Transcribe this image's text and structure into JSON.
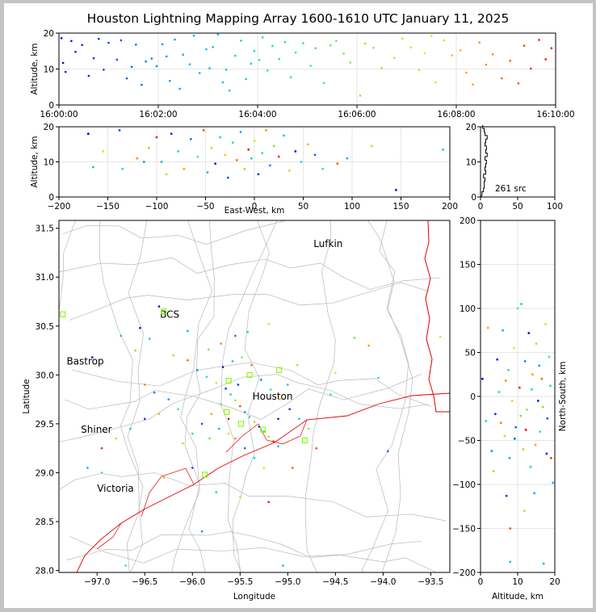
{
  "title": "Houston Lightning Mapping Array 1600-1610 UTC January 11, 2025",
  "colors": {
    "boundary": "#e00000",
    "county": "#b8b8b8",
    "station": "#7fff00",
    "houston": "#ff9900",
    "grid": "#e6e6e6"
  },
  "chart_data": [
    {
      "type": "scatter",
      "name_key": "time-altitude",
      "ylabel": "Altitude, km",
      "xlabel": "",
      "x_ticks": [
        "16:00:00",
        "16:02:00",
        "16:04:00",
        "16:06:00",
        "16:08:00",
        "16:10:00"
      ],
      "xlim": [
        "16:00:00",
        "16:10:00"
      ],
      "ylim": [
        0,
        20
      ],
      "y_ticks": [
        0,
        10,
        20
      ],
      "points": [
        [
          "16:00:03",
          18.6
        ],
        [
          "16:00:05",
          11.7
        ],
        [
          "16:00:08",
          9.2
        ],
        [
          "16:00:15",
          17.8
        ],
        [
          "16:00:20",
          14.8
        ],
        [
          "16:00:28",
          16.7
        ],
        [
          "16:00:36",
          8.1
        ],
        [
          "16:00:42",
          13.0
        ],
        [
          "16:00:48",
          18.4
        ],
        [
          "16:00:54",
          9.8
        ],
        [
          "16:01:00",
          17.3
        ],
        [
          "16:01:10",
          12.6
        ],
        [
          "16:01:15",
          18.0
        ],
        [
          "16:01:22",
          7.4
        ],
        [
          "16:01:28",
          10.6
        ],
        [
          "16:01:33",
          16.8
        ],
        [
          "16:01:40",
          5.6
        ],
        [
          "16:01:45",
          12.1
        ],
        [
          "16:01:52",
          12.9
        ],
        [
          "16:01:58",
          10.8
        ],
        [
          "16:02:05",
          16.9
        ],
        [
          "16:02:10",
          13.5
        ],
        [
          "16:02:14",
          6.7
        ],
        [
          "16:02:20",
          18.2
        ],
        [
          "16:02:26",
          4.5
        ],
        [
          "16:02:30",
          14.0
        ],
        [
          "16:02:38",
          11.3
        ],
        [
          "16:02:43",
          19.3
        ],
        [
          "16:02:50",
          8.9
        ],
        [
          "16:02:58",
          15.5
        ],
        [
          "16:03:02",
          10.2
        ],
        [
          "16:03:06",
          16.1
        ],
        [
          "16:03:12",
          19.6
        ],
        [
          "16:03:18",
          6.3
        ],
        [
          "16:03:22",
          9.8
        ],
        [
          "16:03:26",
          4.0
        ],
        [
          "16:03:33",
          13.7
        ],
        [
          "16:03:40",
          17.9
        ],
        [
          "16:03:46",
          7.2
        ],
        [
          "16:03:52",
          11.5
        ],
        [
          "16:03:56",
          15.0
        ],
        [
          "16:04:02",
          12.5
        ],
        [
          "16:04:06",
          18.8
        ],
        [
          "16:04:12",
          9.6
        ],
        [
          "16:04:18",
          16.4
        ],
        [
          "16:04:26",
          12.8
        ],
        [
          "16:04:33",
          17.5
        ],
        [
          "16:04:40",
          7.7
        ],
        [
          "16:04:46",
          14.6
        ],
        [
          "16:04:55",
          17.2
        ],
        [
          "16:05:04",
          10.9
        ],
        [
          "16:05:10",
          15.8
        ],
        [
          "16:05:20",
          6.1
        ],
        [
          "16:05:28",
          16.6
        ],
        [
          "16:05:35",
          17.8
        ],
        [
          "16:05:44",
          14.3
        ],
        [
          "16:05:52",
          11.8
        ],
        [
          "16:06:04",
          2.6
        ],
        [
          "16:06:10",
          17.1
        ],
        [
          "16:06:20",
          15.9
        ],
        [
          "16:06:30",
          10.3
        ],
        [
          "16:06:45",
          13.1
        ],
        [
          "16:06:55",
          18.5
        ],
        [
          "16:07:05",
          16.0
        ],
        [
          "16:07:15",
          9.7
        ],
        [
          "16:07:22",
          14.4
        ],
        [
          "16:07:30",
          19.2
        ],
        [
          "16:07:35",
          6.3
        ],
        [
          "16:07:45",
          18.0
        ],
        [
          "16:07:55",
          13.8
        ],
        [
          "16:08:05",
          15.2
        ],
        [
          "16:08:12",
          9.0
        ],
        [
          "16:08:20",
          5.7
        ],
        [
          "16:08:28",
          17.4
        ],
        [
          "16:08:36",
          11.2
        ],
        [
          "16:08:44",
          14.1
        ],
        [
          "16:08:55",
          7.4
        ],
        [
          "16:09:05",
          12.3
        ],
        [
          "16:09:15",
          6.0
        ],
        [
          "16:09:22",
          16.5
        ],
        [
          "16:09:30",
          10.1
        ],
        [
          "16:09:40",
          18.1
        ],
        [
          "16:09:48",
          12.7
        ],
        [
          "16:09:55",
          15.8
        ]
      ]
    },
    {
      "type": "scatter",
      "name_key": "ew-altitude",
      "xlabel": "East-West, km",
      "ylabel": "Altitude, km",
      "xlim": [
        -200,
        200
      ],
      "x_ticks": [
        -200,
        -150,
        -100,
        -50,
        0,
        50,
        100,
        150,
        200
      ],
      "ylim": [
        0,
        20
      ],
      "y_ticks": [
        0,
        10,
        20
      ],
      "points": [
        [
          -170,
          18.0
        ],
        [
          -165,
          8.5
        ],
        [
          -155,
          13.0
        ],
        [
          -138,
          19.0
        ],
        [
          -135,
          8.0
        ],
        [
          -120,
          11.0
        ],
        [
          -113,
          10.0
        ],
        [
          -108,
          14.0
        ],
        [
          -100,
          17.0
        ],
        [
          -95,
          10.0
        ],
        [
          -90,
          6.5
        ],
        [
          -85,
          18.0
        ],
        [
          -78,
          13.0
        ],
        [
          -72,
          8.0
        ],
        [
          -65,
          16.5
        ],
        [
          -58,
          11.5
        ],
        [
          -52,
          19.0
        ],
        [
          -48,
          7.0
        ],
        [
          -44,
          14.0
        ],
        [
          -40,
          9.5
        ],
        [
          -35,
          17.0
        ],
        [
          -30,
          12.0
        ],
        [
          -27,
          5.5
        ],
        [
          -22,
          15.5
        ],
        [
          -18,
          10.5
        ],
        [
          -14,
          18.5
        ],
        [
          -10,
          8.0
        ],
        [
          -6,
          13.5
        ],
        [
          -3,
          11.0
        ],
        [
          0,
          16.0
        ],
        [
          4,
          6.5
        ],
        [
          8,
          12.5
        ],
        [
          12,
          19.0
        ],
        [
          16,
          9.0
        ],
        [
          20,
          14.5
        ],
        [
          25,
          11.5
        ],
        [
          30,
          17.5
        ],
        [
          36,
          7.5
        ],
        [
          42,
          13.0
        ],
        [
          48,
          10.0
        ],
        [
          55,
          15.0
        ],
        [
          62,
          12.0
        ],
        [
          70,
          8.0
        ],
        [
          85,
          9.5
        ],
        [
          95,
          11.0
        ],
        [
          120,
          14.5
        ],
        [
          145,
          2.0
        ],
        [
          193,
          13.5
        ]
      ]
    },
    {
      "type": "bar",
      "name_key": "altitude-histogram",
      "xlim": [
        0,
        100
      ],
      "x_ticks": [
        0,
        50,
        100
      ],
      "ylim": [
        0,
        20
      ],
      "y_ticks": [
        0,
        10,
        20
      ],
      "bins": [
        [
          1,
          2
        ],
        [
          2,
          4
        ],
        [
          3,
          5
        ],
        [
          4,
          5
        ],
        [
          5,
          6
        ],
        [
          6,
          4
        ],
        [
          7,
          7
        ],
        [
          8,
          6
        ],
        [
          9,
          7
        ],
        [
          10,
          8
        ],
        [
          11,
          6
        ],
        [
          12,
          9
        ],
        [
          13,
          7
        ],
        [
          14,
          8
        ],
        [
          15,
          6
        ],
        [
          16,
          7
        ],
        [
          17,
          9
        ],
        [
          18,
          6
        ],
        [
          19,
          5
        ],
        [
          20,
          3
        ]
      ],
      "annotation": "261 src"
    },
    {
      "type": "scatter",
      "name_key": "plan-view",
      "xlabel": "Longitude",
      "ylabel": "Latitude",
      "xlim": [
        -97.4,
        -93.3
      ],
      "ylim": [
        27.98,
        31.58
      ],
      "x_ticks": [
        -97.0,
        -96.5,
        -96.0,
        -95.5,
        -95.0,
        -94.5,
        -94.0,
        -93.5
      ],
      "y_ticks": [
        28.0,
        28.5,
        29.0,
        29.5,
        30.0,
        30.5,
        31.0,
        31.5
      ],
      "x_tick_labels": [
        "−97.0",
        "−96.5",
        "−96.0",
        "−95.5",
        "−95.0",
        "−94.5",
        "−94.0",
        "−93.5"
      ],
      "y_tick_labels": [
        "28.0",
        "28.5",
        "29.0",
        "29.5",
        "30.0",
        "30.5",
        "31.0",
        "31.5"
      ],
      "cities": [
        {
          "name": "Lufkin",
          "lon": -94.73,
          "lat": 31.34
        },
        {
          "name": "BCS",
          "lon": -96.34,
          "lat": 30.62
        },
        {
          "name": "Bastrop",
          "lon": -97.32,
          "lat": 30.14
        },
        {
          "name": "Houston",
          "lon": -95.37,
          "lat": 29.78
        },
        {
          "name": "Shiner",
          "lon": -97.17,
          "lat": 29.44
        },
        {
          "name": "Victoria",
          "lon": -97.0,
          "lat": 28.84
        }
      ],
      "stations": [
        [
          -97.36,
          30.62
        ],
        [
          -96.3,
          30.65
        ],
        [
          -95.62,
          29.94
        ],
        [
          -95.4,
          30.0
        ],
        [
          -95.09,
          30.05
        ],
        [
          -95.64,
          29.62
        ],
        [
          -95.49,
          29.5
        ],
        [
          -95.26,
          29.44
        ],
        [
          -94.82,
          29.33
        ],
        [
          -95.87,
          28.98
        ]
      ],
      "points": [
        [
          -96.35,
          30.7
        ],
        [
          -96.05,
          30.45
        ],
        [
          -95.83,
          30.26
        ],
        [
          -95.7,
          30.32
        ],
        [
          -95.55,
          30.4
        ],
        [
          -95.42,
          30.44
        ],
        [
          -95.2,
          30.52
        ],
        [
          -96.55,
          30.48
        ],
        [
          -96.45,
          30.37
        ],
        [
          -96.2,
          30.2
        ],
        [
          -96.05,
          30.15
        ],
        [
          -95.95,
          30.05
        ],
        [
          -95.85,
          29.98
        ],
        [
          -95.75,
          29.92
        ],
        [
          -95.65,
          29.86
        ],
        [
          -95.6,
          29.8
        ],
        [
          -95.55,
          29.74
        ],
        [
          -95.5,
          29.68
        ],
        [
          -95.45,
          29.62
        ],
        [
          -95.4,
          29.57
        ],
        [
          -95.35,
          29.52
        ],
        [
          -95.3,
          29.47
        ],
        [
          -95.25,
          29.42
        ],
        [
          -95.2,
          29.37
        ],
        [
          -95.15,
          29.32
        ],
        [
          -95.1,
          29.27
        ],
        [
          -95.7,
          29.7
        ],
        [
          -95.8,
          29.6
        ],
        [
          -95.9,
          29.5
        ],
        [
          -96.0,
          29.4
        ],
        [
          -96.1,
          29.3
        ],
        [
          -95.62,
          29.55
        ],
        [
          -95.72,
          29.45
        ],
        [
          -95.82,
          29.35
        ],
        [
          -95.55,
          29.35
        ],
        [
          -95.45,
          29.25
        ],
        [
          -95.35,
          29.15
        ],
        [
          -95.25,
          29.05
        ],
        [
          -95.68,
          30.08
        ],
        [
          -95.58,
          30.14
        ],
        [
          -95.48,
          30.18
        ],
        [
          -95.38,
          30.1
        ],
        [
          -95.28,
          29.95
        ],
        [
          -95.18,
          29.85
        ],
        [
          -95.08,
          29.75
        ],
        [
          -94.98,
          29.65
        ],
        [
          -94.88,
          29.55
        ],
        [
          -94.78,
          29.45
        ],
        [
          -94.7,
          29.25
        ],
        [
          -96.25,
          29.75
        ],
        [
          -96.15,
          29.65
        ],
        [
          -96.35,
          29.6
        ],
        [
          -96.5,
          29.55
        ],
        [
          -96.65,
          29.45
        ],
        [
          -96.8,
          29.35
        ],
        [
          -96.95,
          29.25
        ],
        [
          -97.1,
          29.05
        ],
        [
          -96.95,
          29.0
        ],
        [
          -96.3,
          28.95
        ],
        [
          -96.0,
          29.05
        ],
        [
          -95.75,
          28.8
        ],
        [
          -95.5,
          28.75
        ],
        [
          -95.2,
          28.7
        ],
        [
          -95.05,
          28.05
        ],
        [
          -94.3,
          30.38
        ],
        [
          -94.15,
          30.3
        ],
        [
          -93.95,
          29.22
        ],
        [
          -94.05,
          29.97
        ],
        [
          -93.4,
          30.39
        ],
        [
          -97.05,
          30.18
        ],
        [
          -96.75,
          30.4
        ],
        [
          -96.6,
          30.25
        ],
        [
          -96.5,
          29.9
        ],
        [
          -96.4,
          29.82
        ],
        [
          -94.55,
          29.8
        ],
        [
          -94.5,
          30.02
        ],
        [
          -95.1,
          29.55
        ],
        [
          -95.0,
          29.9
        ],
        [
          -94.9,
          30.1
        ],
        [
          -94.95,
          29.05
        ],
        [
          -95.9,
          28.4
        ],
        [
          -96.7,
          28.05
        ],
        [
          -95.62,
          29.4
        ],
        [
          -95.52,
          29.9
        ]
      ]
    },
    {
      "type": "scatter",
      "name_key": "altitude-ns",
      "xlabel": "Altitude, km",
      "ylabel": "North-South, km",
      "xlim": [
        0,
        20
      ],
      "x_ticks": [
        0,
        10,
        20
      ],
      "ylim": [
        -200,
        200
      ],
      "y_ticks": [
        -200,
        -150,
        -100,
        -50,
        0,
        50,
        100,
        150,
        200
      ],
      "points": [
        [
          0.5,
          20
        ],
        [
          1.5,
          -28
        ],
        [
          2,
          78
        ],
        [
          3,
          -62
        ],
        [
          3.5,
          -85
        ],
        [
          4.5,
          42
        ],
        [
          5,
          5
        ],
        [
          5.5,
          -30
        ],
        [
          6,
          75
        ],
        [
          6.5,
          -45
        ],
        [
          7,
          -113
        ],
        [
          7.5,
          30
        ],
        [
          8,
          -150
        ],
        [
          8,
          -188
        ],
        [
          9,
          55
        ],
        [
          9.5,
          -35
        ],
        [
          10,
          100
        ],
        [
          10.5,
          10
        ],
        [
          11,
          105
        ],
        [
          11.5,
          -60
        ],
        [
          12,
          40
        ],
        [
          12.5,
          -15
        ],
        [
          13,
          72
        ],
        [
          13.5,
          -80
        ],
        [
          14,
          25
        ],
        [
          14.5,
          -110
        ],
        [
          15,
          60
        ],
        [
          15.5,
          -5
        ],
        [
          16,
          -40
        ],
        [
          16.5,
          20
        ],
        [
          17,
          -190
        ],
        [
          17.5,
          82
        ],
        [
          18,
          -25
        ],
        [
          18.5,
          45
        ],
        [
          19,
          -70
        ],
        [
          19.5,
          -98
        ],
        [
          8.5,
          -5
        ],
        [
          9.2,
          -48
        ],
        [
          10.8,
          -22
        ],
        [
          12.2,
          -38
        ],
        [
          13.8,
          8
        ],
        [
          14.8,
          -55
        ],
        [
          15.8,
          35
        ],
        [
          16.8,
          -12
        ],
        [
          17.8,
          -65
        ],
        [
          18.8,
          12
        ],
        [
          6.8,
          18
        ],
        [
          7.8,
          -70
        ],
        [
          11.8,
          -130
        ],
        [
          4,
          -20
        ]
      ]
    }
  ]
}
